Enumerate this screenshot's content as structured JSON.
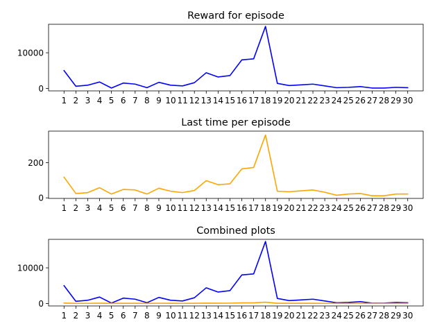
{
  "chart_data": [
    {
      "type": "line",
      "title": "Reward for episode",
      "xlabel": "",
      "ylabel": "",
      "x": [
        1,
        2,
        3,
        4,
        5,
        6,
        7,
        8,
        9,
        10,
        11,
        12,
        13,
        14,
        15,
        16,
        17,
        18,
        19,
        20,
        21,
        22,
        23,
        24,
        25,
        26,
        27,
        28,
        29,
        30
      ],
      "ylim": [
        -700,
        18000
      ],
      "yticks": [
        0,
        10000
      ],
      "grid": false,
      "series": [
        {
          "color": "#0000ff",
          "values": [
            5000,
            600,
            900,
            1800,
            100,
            1500,
            1200,
            200,
            1700,
            900,
            700,
            1600,
            4400,
            3200,
            3600,
            8000,
            8300,
            17400,
            1400,
            800,
            1000,
            1200,
            700,
            200,
            300,
            500,
            100,
            100,
            300,
            200
          ]
        }
      ]
    },
    {
      "type": "line",
      "title": "Last time per episode",
      "xlabel": "",
      "ylabel": "",
      "x": [
        1,
        2,
        3,
        4,
        5,
        6,
        7,
        8,
        9,
        10,
        11,
        12,
        13,
        14,
        15,
        16,
        17,
        18,
        19,
        20,
        21,
        22,
        23,
        24,
        25,
        26,
        27,
        28,
        29,
        30
      ],
      "ylim": [
        -3,
        380
      ],
      "yticks": [
        0,
        200
      ],
      "grid": false,
      "series": [
        {
          "color": "#ffa500",
          "values": [
            118,
            25,
            30,
            58,
            22,
            48,
            45,
            22,
            55,
            38,
            30,
            42,
            98,
            75,
            80,
            165,
            173,
            358,
            38,
            35,
            40,
            45,
            32,
            15,
            22,
            25,
            12,
            12,
            22,
            22
          ]
        }
      ]
    },
    {
      "type": "line",
      "title": "Combined plots",
      "xlabel": "",
      "ylabel": "",
      "x": [
        1,
        2,
        3,
        4,
        5,
        6,
        7,
        8,
        9,
        10,
        11,
        12,
        13,
        14,
        15,
        16,
        17,
        18,
        19,
        20,
        21,
        22,
        23,
        24,
        25,
        26,
        27,
        28,
        29,
        30
      ],
      "ylim": [
        -700,
        18000
      ],
      "yticks": [
        0,
        10000
      ],
      "grid": false,
      "series": [
        {
          "color": "#0000ff",
          "values": [
            5000,
            600,
            900,
            1800,
            100,
            1500,
            1200,
            200,
            1700,
            900,
            700,
            1600,
            4400,
            3200,
            3600,
            8000,
            8300,
            17400,
            1400,
            800,
            1000,
            1200,
            700,
            200,
            300,
            500,
            100,
            100,
            300,
            200
          ]
        },
        {
          "color": "#ffa500",
          "values": [
            118,
            25,
            30,
            58,
            22,
            48,
            45,
            22,
            55,
            38,
            30,
            42,
            98,
            75,
            80,
            165,
            173,
            358,
            38,
            35,
            40,
            45,
            32,
            15,
            22,
            25,
            12,
            12,
            22,
            22
          ]
        }
      ]
    }
  ]
}
